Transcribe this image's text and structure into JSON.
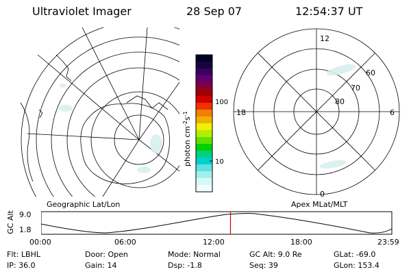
{
  "header": {
    "title": "Ultraviolet Imager",
    "date": "28 Sep 07",
    "time": "12:54:37 UT"
  },
  "colorbar": {
    "unit_base": "photon cm",
    "unit_sup1": "-2",
    "unit_mid": "s",
    "unit_sup2": "-1",
    "ticks": [
      "100",
      "10"
    ],
    "colors": [
      "#000020",
      "#1a0040",
      "#3a0060",
      "#600070",
      "#800040",
      "#a00000",
      "#d00000",
      "#f03000",
      "#f08000",
      "#f0b000",
      "#f0f000",
      "#b0f000",
      "#60e000",
      "#00d000",
      "#00d080",
      "#00d0d0",
      "#60e0e0",
      "#a0f0f0",
      "#d8f8f8",
      "#f0ffff"
    ]
  },
  "left_map": {
    "label": "Geographic Lat/Lon"
  },
  "right_map": {
    "label": "Apex MLat/MLT",
    "hour_labels": {
      "top": "12",
      "left": "18",
      "right": "6",
      "bottom": "0"
    },
    "lat_labels": [
      "60",
      "70",
      "80"
    ]
  },
  "timeline": {
    "ylabel": "GC Alt",
    "ymax": "9.0",
    "ymin": "1.8",
    "xticks": [
      "00:00",
      "06:00",
      "12:00",
      "18:00",
      "23:59"
    ],
    "current_fraction": 0.54,
    "marker_color": "#d00000"
  },
  "info": {
    "flt": "Flt: LBHL",
    "ip": "IP: 36.0",
    "door": "Door: Open",
    "gain": "Gain: 14",
    "mode": "Mode: Normal",
    "dsp": "Dsp:   -1.8",
    "gcalt": "GC Alt: 9.0 Re",
    "seq": "Seq: 39",
    "glat": "GLat: -69.0",
    "glon": "GLon: 153.4"
  }
}
